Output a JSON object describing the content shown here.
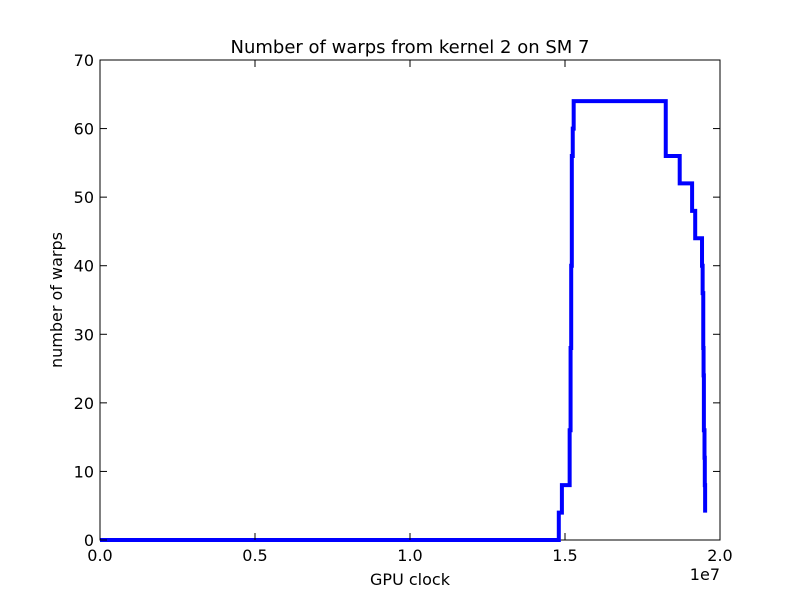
{
  "chart_data": {
    "type": "line",
    "title": "Number of warps from kernel 2 on SM 7",
    "xlabel": "GPU clock",
    "ylabel": "number of warps",
    "x_offset_label": "1e7",
    "xlim": [
      0,
      20000000
    ],
    "ylim": [
      0,
      70
    ],
    "x_ticks": [
      0,
      5000000,
      10000000,
      15000000,
      20000000
    ],
    "x_tick_labels": [
      "0.0",
      "0.5",
      "1.0",
      "1.5",
      "2.0"
    ],
    "y_ticks": [
      0,
      10,
      20,
      30,
      40,
      50,
      60,
      70
    ],
    "y_tick_labels": [
      "0",
      "10",
      "20",
      "30",
      "40",
      "50",
      "60",
      "70"
    ],
    "grid": false,
    "series": [
      {
        "color": "#0000ff",
        "step": true,
        "x": [
          0,
          14800000,
          14900000,
          15150000,
          15180000,
          15200000,
          15220000,
          15250000,
          15280000,
          15300000,
          18250000,
          18700000,
          19100000,
          19120000,
          19200000,
          19420000,
          19440000,
          19460000,
          19470000,
          19480000,
          19500000,
          19510000,
          19520000
        ],
        "values": [
          0,
          4,
          8,
          16,
          28,
          40,
          56,
          60,
          64,
          64,
          56,
          52,
          48,
          48,
          44,
          40,
          36,
          28,
          24,
          16,
          12,
          8,
          4
        ]
      }
    ]
  }
}
